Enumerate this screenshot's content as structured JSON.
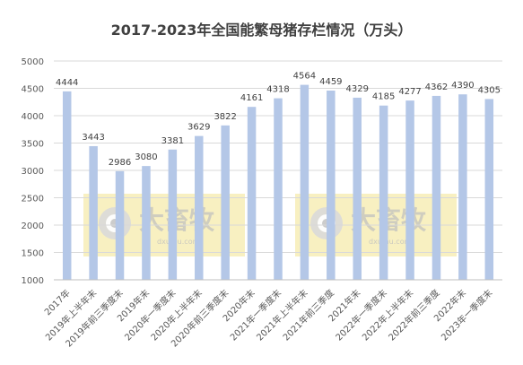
{
  "chart_data": {
    "type": "bar",
    "title": "2017-2023年全国能繁母猪存栏情况（万头）",
    "categories": [
      "2017年",
      "2019年上半年末",
      "2019年前三季度末",
      "2019年末",
      "2020年一季度末",
      "2020年上半年末",
      "2020年前三季度末",
      "2020年末",
      "2021年一季度末",
      "2021年上半年末",
      "2021年前三季度",
      "2021年末",
      "2022年一季度末",
      "2022年上半年末",
      "2022年前三季度",
      "2022年末",
      "2023年一季度末"
    ],
    "values": [
      4444,
      3443,
      2986,
      3080,
      3381,
      3629,
      3822,
      4161,
      4318,
      4564,
      4459,
      4329,
      4185,
      4277,
      4362,
      4390,
      4305
    ],
    "y_ticks": [
      1000,
      1500,
      2000,
      2500,
      3000,
      3500,
      4000,
      4500,
      5000
    ],
    "ylim": [
      1000,
      5000
    ],
    "grid": true,
    "legend": "none",
    "colors": {
      "bar": "#b4c7e7",
      "grid": "#d9d9d9",
      "axis": "#bfbfbf",
      "text": "#595959",
      "title": "#404040",
      "watermark_box": "#f3e79b"
    },
    "watermark": {
      "text": "大畜牧",
      "url": "dxumu.com"
    }
  }
}
